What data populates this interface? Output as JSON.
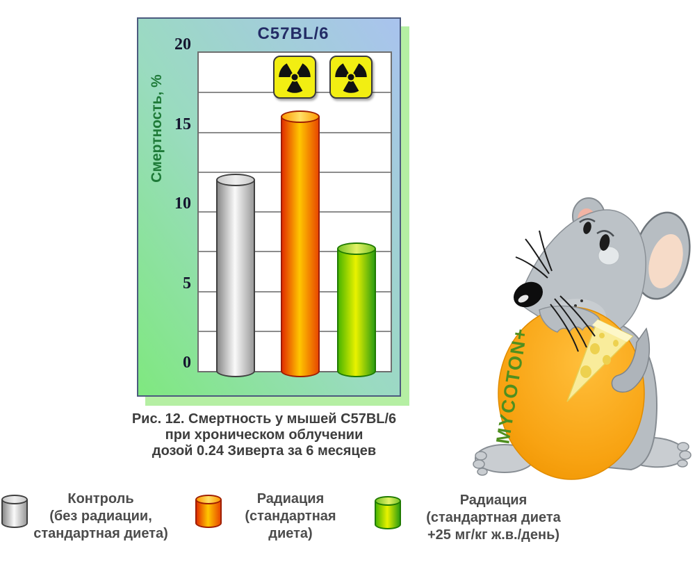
{
  "figure": {
    "caption_lines": [
      "Рис. 12. Смертность у мышей C57BL/6",
      "при хроническом облучении",
      "дозой 0.24 Зиверта за 6 месяцев"
    ]
  },
  "chart_data": {
    "type": "bar",
    "title": "C57BL/6",
    "xlabel": "",
    "ylabel": "Смертность, %",
    "ylim": [
      0,
      20
    ],
    "yticks": [
      0,
      5,
      10,
      15,
      20
    ],
    "grid": true,
    "grid_interval": 2.5,
    "bar_style": "3d-cylinder",
    "categories": [
      "Контроль (без радиации, стандартная диета)",
      "Радиация (стандартная диета)",
      "Радиация (стандартная диета +25 мг/кг ж.в./день)"
    ],
    "values": [
      12,
      16,
      7.7
    ],
    "radiation_marks": [
      1,
      2
    ],
    "legend_position": "bottom"
  },
  "legend": {
    "items": [
      {
        "swatch": "gray-cylinder",
        "lines": [
          "Контроль",
          "(без радиации,",
          "стандартная диета)"
        ]
      },
      {
        "swatch": "orange-cylinder",
        "lines": [
          "Радиация",
          "(стандартная",
          "диета)"
        ]
      },
      {
        "swatch": "green-cylinder",
        "lines": [
          "Радиация",
          "(стандартная диета",
          "+25 мг/кг ж.в./день)"
        ]
      }
    ]
  },
  "mascot": {
    "type": "cartoon-mouse-hugging-cheese",
    "text": "MYCOTON+",
    "text_color": "#4f8f1f"
  },
  "colors": {
    "panel_border": "#4b5a7e",
    "panel_bg_top_right": "#a9c3ee",
    "panel_bg_bottom_left": "#7fe87f",
    "panel_shadow": "#b5efa3",
    "plot_bg": "#ffffff",
    "gridline": "#8c8c8c",
    "title_color": "#232c66",
    "ylabel_color": "#1e7a38",
    "tick_color": "#14142e",
    "caption_color": "#3d3d3d",
    "legend_text": "#4c4c4c",
    "badge_bg": "#f2ee12",
    "cheese_body": "#f9ec9b",
    "egg_orange": "#f9a61a",
    "bars": [
      {
        "name": "gray",
        "edge": "#8a8a8a",
        "edge2": "#9a9a9a",
        "center": "#fafafa",
        "cap": "#efefef",
        "capEdge": "#c8c8c8",
        "outline": "#3f3f3f"
      },
      {
        "name": "orange",
        "edge": "#e13000",
        "edge2": "#e84a00",
        "center": "#ffc600",
        "cap": "#ffe066",
        "capEdge": "#ff9a00",
        "outline": "#9e1e00"
      },
      {
        "name": "green",
        "edge": "#4db600",
        "edge2": "#2f9e10",
        "center": "#e9f200",
        "cap": "#e3f266",
        "capEdge": "#79c428",
        "outline": "#1f7a00"
      }
    ]
  }
}
